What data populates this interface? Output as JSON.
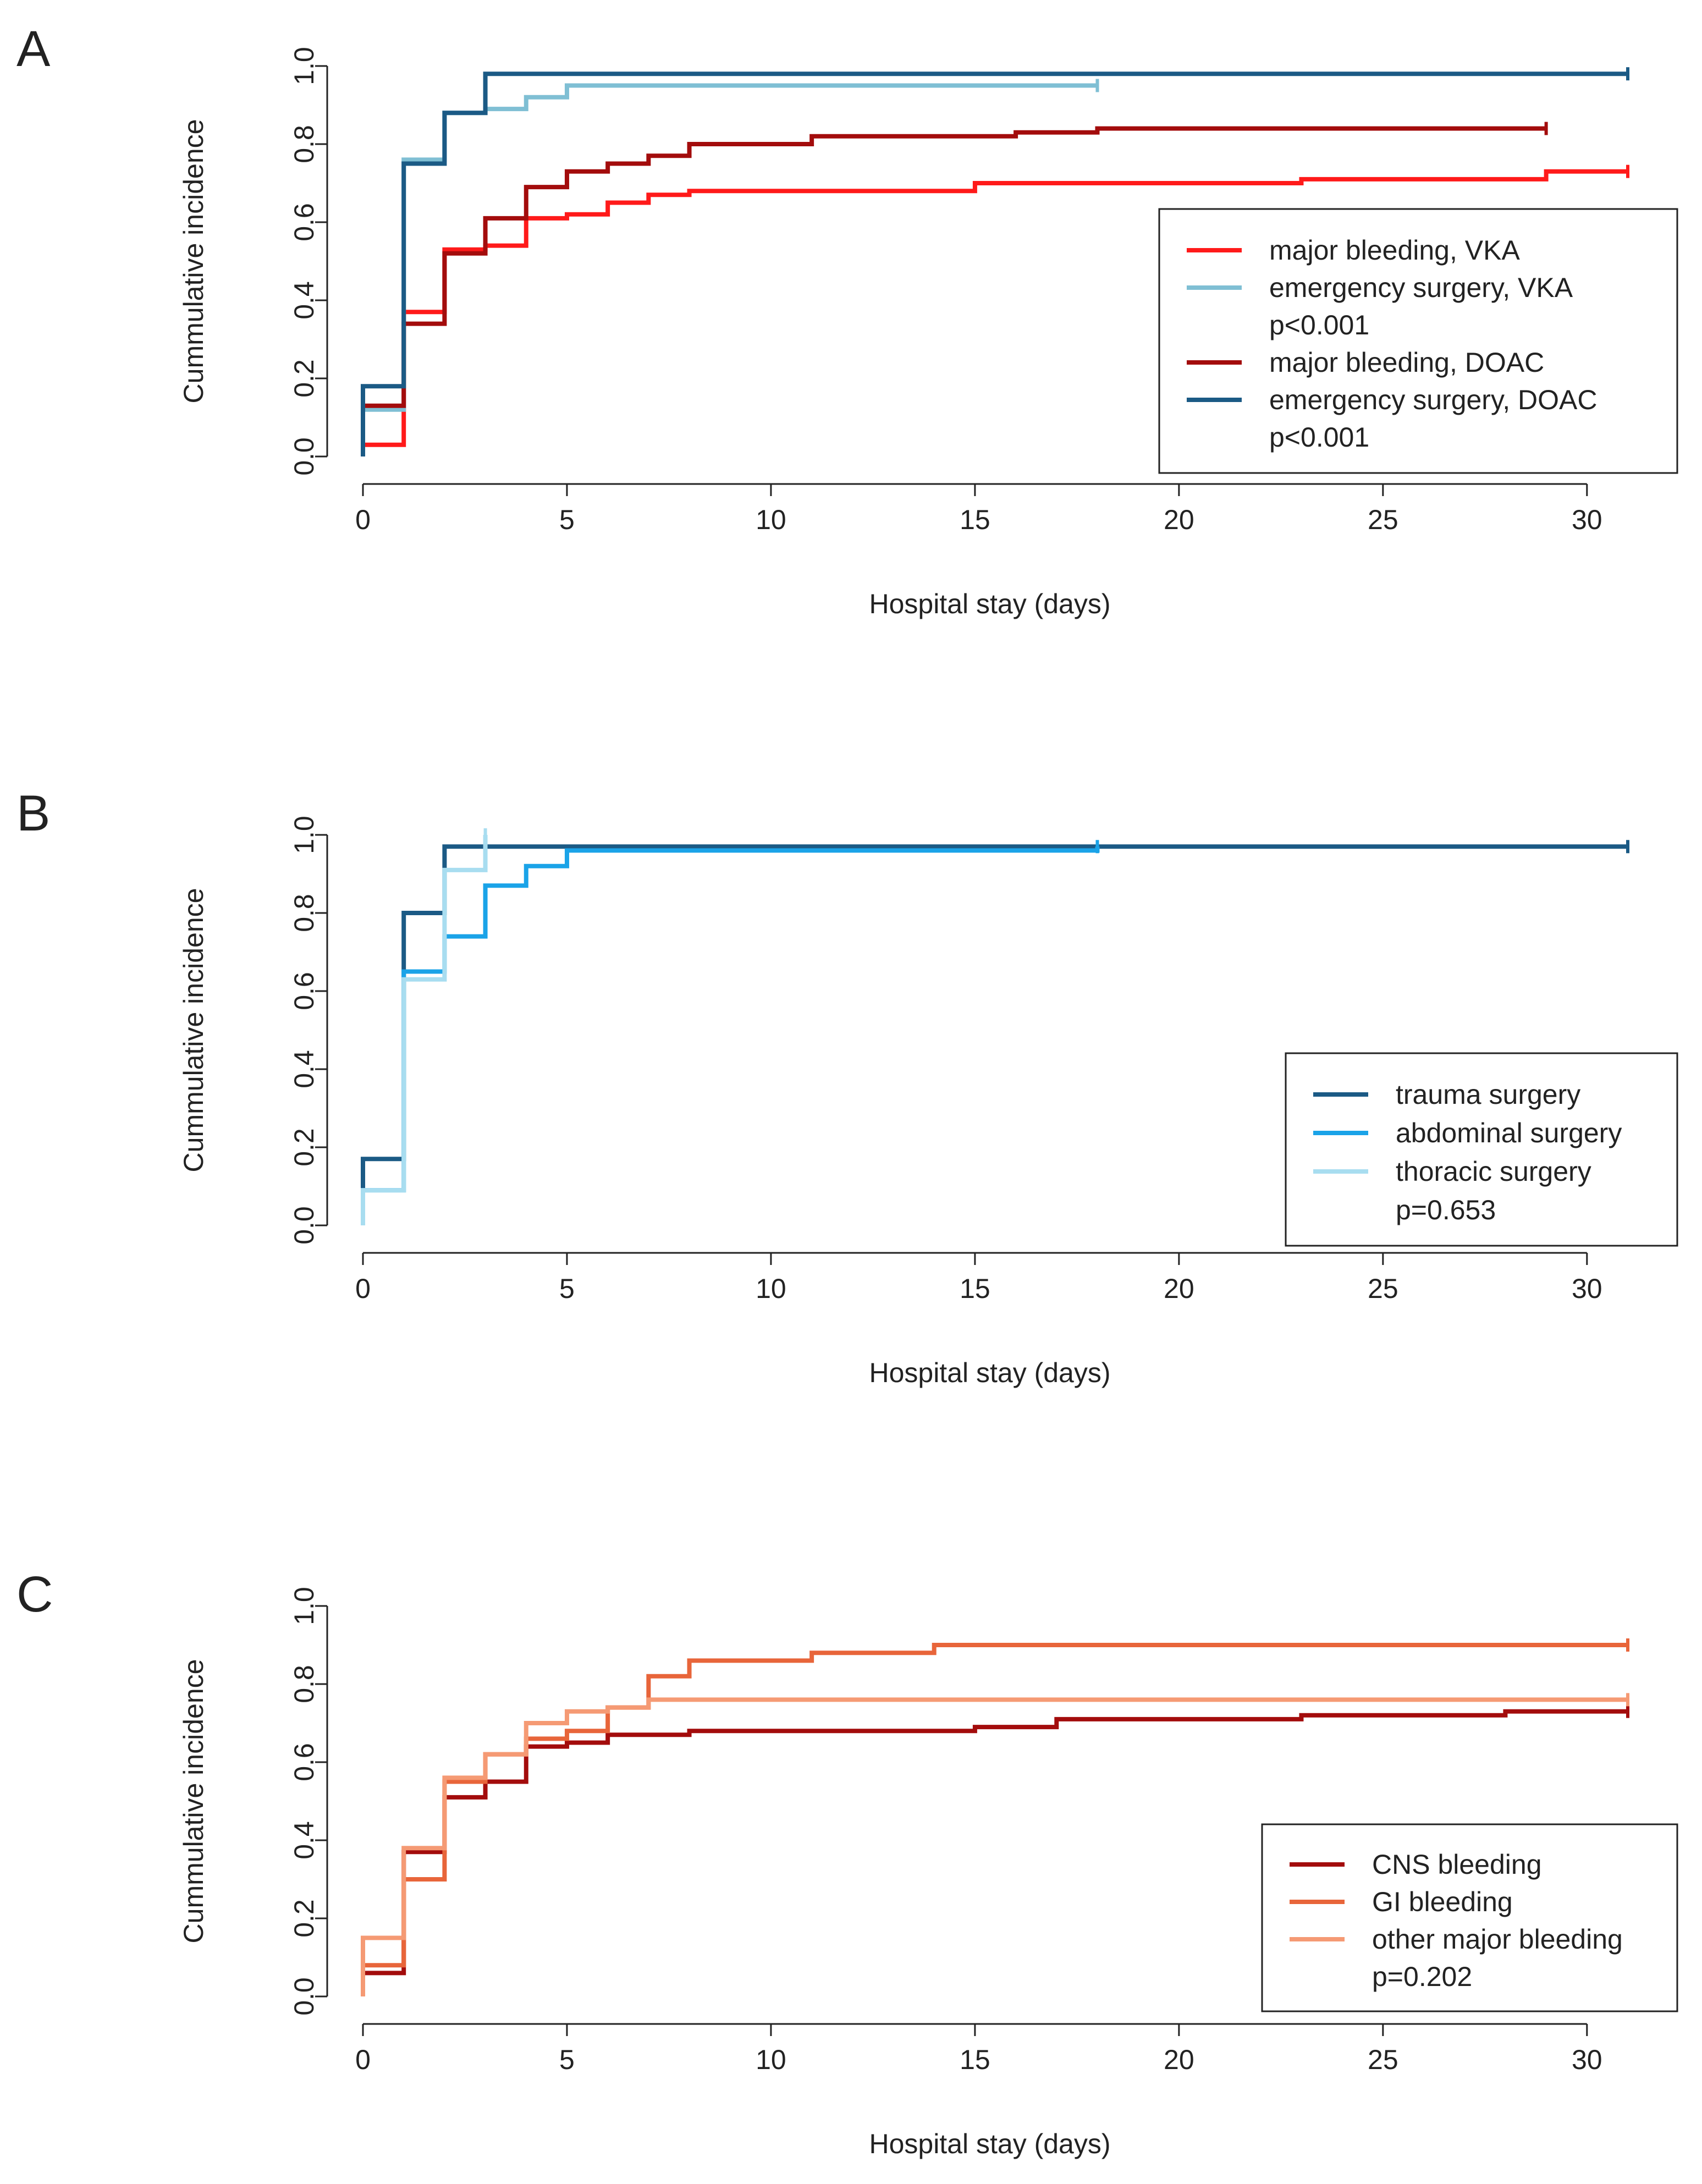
{
  "figure": {
    "background": "#ffffff"
  },
  "chart_data": [
    {
      "type": "line",
      "panel_letter": "A",
      "title": "",
      "xlabel": "Hospital stay (days)",
      "ylabel": "Cummulative incidence",
      "xlim": [
        0,
        31
      ],
      "ylim": [
        0,
        1
      ],
      "xticks": [
        0,
        5,
        10,
        15,
        20,
        25,
        30
      ],
      "yticks": [
        "0.0",
        "0.2",
        "0.4",
        "0.6",
        "0.8",
        "1.0"
      ],
      "legend_position": "right",
      "series": [
        {
          "name": "major bleeding, VKA",
          "color": "#ff1a1a",
          "step": true,
          "x": [
            0,
            1,
            2,
            3,
            4,
            5,
            6,
            7,
            8,
            15,
            23,
            29,
            31
          ],
          "y": [
            0.03,
            0.37,
            0.53,
            0.54,
            0.61,
            0.62,
            0.65,
            0.67,
            0.68,
            0.7,
            0.71,
            0.73,
            0.73
          ]
        },
        {
          "name": "emergency surgery, VKA",
          "color": "#7fbfd4",
          "step": true,
          "x": [
            0,
            1,
            2,
            3,
            4,
            5,
            18
          ],
          "y": [
            0.12,
            0.76,
            0.88,
            0.89,
            0.92,
            0.95,
            0.95
          ]
        },
        {
          "name": "p<0.001",
          "legend_only_text": true
        },
        {
          "name": "major bleeding, DOAC",
          "color": "#a30c0c",
          "step": true,
          "x": [
            0,
            1,
            2,
            3,
            4,
            5,
            6,
            7,
            8,
            11,
            16,
            18,
            29
          ],
          "y": [
            0.13,
            0.34,
            0.52,
            0.61,
            0.69,
            0.73,
            0.75,
            0.77,
            0.8,
            0.82,
            0.83,
            0.84,
            0.84
          ]
        },
        {
          "name": "emergency surgery, DOAC",
          "color": "#1b5a85",
          "step": true,
          "x": [
            0,
            1,
            2,
            3,
            31
          ],
          "y": [
            0.18,
            0.75,
            0.88,
            0.98,
            0.98
          ]
        },
        {
          "name": "p<0.001",
          "legend_only_text": true
        }
      ]
    },
    {
      "type": "line",
      "panel_letter": "B",
      "title": "",
      "xlabel": "Hospital stay (days)",
      "ylabel": "Cummulative incidence",
      "xlim": [
        0,
        31
      ],
      "ylim": [
        0,
        1
      ],
      "xticks": [
        0,
        5,
        10,
        15,
        20,
        25,
        30
      ],
      "yticks": [
        "0.0",
        "0.2",
        "0.4",
        "0.6",
        "0.8",
        "1.0"
      ],
      "legend_position": "right",
      "series": [
        {
          "name": "trauma surgery",
          "color": "#1b5a85",
          "step": true,
          "x": [
            0,
            1,
            2,
            31
          ],
          "y": [
            0.17,
            0.8,
            0.97,
            0.97
          ]
        },
        {
          "name": "abdominal surgery",
          "color": "#1aa3e8",
          "step": true,
          "x": [
            0,
            1,
            2,
            3,
            4,
            5,
            18
          ],
          "y": [
            0.09,
            0.65,
            0.74,
            0.87,
            0.92,
            0.96,
            0.97
          ]
        },
        {
          "name": "thoracic surgery",
          "color": "#a8ddf0",
          "step": true,
          "x": [
            0,
            1,
            2,
            3
          ],
          "y": [
            0.09,
            0.63,
            0.91,
            1.0
          ]
        },
        {
          "name": "p=0.653",
          "legend_only_text": true
        }
      ]
    },
    {
      "type": "line",
      "panel_letter": "C",
      "title": "",
      "xlabel": "Hospital stay (days)",
      "ylabel": "Cummulative incidence",
      "xlim": [
        0,
        31
      ],
      "ylim": [
        0,
        1
      ],
      "xticks": [
        0,
        5,
        10,
        15,
        20,
        25,
        30
      ],
      "yticks": [
        "0.0",
        "0.2",
        "0.4",
        "0.6",
        "0.8",
        "1.0"
      ],
      "legend_position": "right",
      "series": [
        {
          "name": "CNS bleeding",
          "color": "#a30c0c",
          "step": true,
          "x": [
            0,
            1,
            2,
            3,
            4,
            5,
            6,
            8,
            15,
            17,
            23,
            28,
            31
          ],
          "y": [
            0.06,
            0.37,
            0.51,
            0.55,
            0.64,
            0.65,
            0.67,
            0.68,
            0.69,
            0.71,
            0.72,
            0.73,
            0.73
          ]
        },
        {
          "name": "GI bleeding",
          "color": "#e8653a",
          "step": true,
          "x": [
            0,
            1,
            2,
            3,
            4,
            5,
            6,
            7,
            8,
            11,
            14,
            31
          ],
          "y": [
            0.08,
            0.3,
            0.55,
            0.62,
            0.66,
            0.68,
            0.74,
            0.82,
            0.86,
            0.88,
            0.9,
            0.9
          ]
        },
        {
          "name": "other major bleeding",
          "color": "#f59a74",
          "step": true,
          "x": [
            0,
            1,
            2,
            3,
            4,
            5,
            6,
            7,
            31
          ],
          "y": [
            0.15,
            0.38,
            0.56,
            0.62,
            0.7,
            0.73,
            0.74,
            0.76,
            0.76
          ]
        },
        {
          "name": "p=0.202",
          "legend_only_text": true
        }
      ]
    }
  ]
}
